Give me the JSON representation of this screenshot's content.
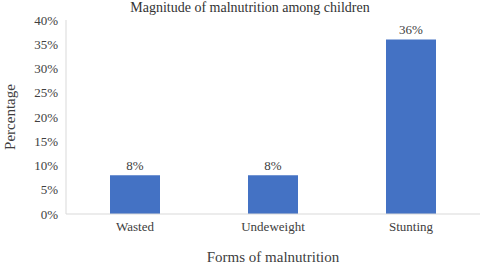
{
  "chart_data": {
    "type": "bar",
    "title": "Magnitude of malnutrition among children",
    "x_label": "Forms of malnutrition",
    "y_label": "Percentage",
    "categories": [
      "Wasted",
      "Undeweight",
      "Stunting"
    ],
    "values": [
      8,
      8,
      36
    ],
    "value_labels": [
      "8%",
      "8%",
      "36%"
    ],
    "data_labels": true,
    "color": "#4472c4",
    "ylim": [
      0,
      40
    ],
    "yticks": [
      {
        "value": 0,
        "label": "0%"
      },
      {
        "value": 5,
        "label": "5%"
      },
      {
        "value": 10,
        "label": "10%"
      },
      {
        "value": 15,
        "label": "15%"
      },
      {
        "value": 20,
        "label": "20%"
      },
      {
        "value": 25,
        "label": "25%"
      },
      {
        "value": 30,
        "label": "30%"
      },
      {
        "value": 35,
        "label": "35%"
      },
      {
        "value": 40,
        "label": "40%"
      }
    ],
    "grid": false
  }
}
